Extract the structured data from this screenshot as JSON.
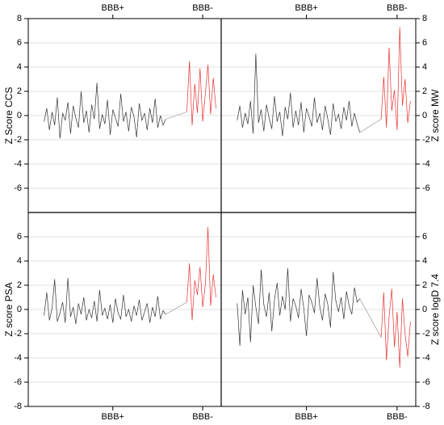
{
  "chart_data": [
    {
      "type": "line",
      "ylabel": "Z Score CCS",
      "xlim": [
        -6,
        67
      ],
      "ylim": [
        -8,
        8
      ],
      "grid": true,
      "xticks": [
        {
          "value": 26,
          "label": "BBB+"
        },
        {
          "value": 60,
          "label": "BBB-"
        }
      ],
      "yticks": [
        -6,
        -4,
        -2,
        0,
        2,
        4,
        6,
        8
      ],
      "series": [
        {
          "color": "#333333",
          "x": [
            0,
            1,
            2,
            3,
            4,
            5,
            6,
            7,
            8,
            9,
            10,
            11,
            12,
            13,
            14,
            15,
            16,
            17,
            18,
            19,
            20,
            21,
            22,
            23,
            24,
            25,
            26,
            27,
            28,
            29,
            30,
            31,
            32,
            33,
            34,
            35,
            36,
            37,
            38,
            39,
            40,
            41,
            42,
            43,
            44,
            45,
            46
          ],
          "values": [
            -0.5,
            0.6,
            -1.2,
            0.3,
            -0.8,
            1.5,
            -1.9,
            0.2,
            -0.4,
            1.1,
            -1.5,
            0.8,
            -0.2,
            -1.0,
            2.0,
            -0.6,
            0.4,
            -1.4,
            0.9,
            -0.3,
            2.7,
            -1.1,
            0.1,
            -0.7,
            1.3,
            -1.6,
            0.5,
            -0.2,
            -0.9,
            1.8,
            -0.5,
            0.3,
            -1.3,
            0.7,
            -0.1,
            -1.8,
            1.0,
            -0.4,
            0.2,
            -1.2,
            0.6,
            -0.6,
            1.4,
            -1.0,
            0.0,
            -0.8,
            -0.3
          ]
        },
        {
          "color": "#e83030",
          "x": [
            54,
            55,
            56,
            57,
            58,
            59,
            60,
            61,
            62,
            63,
            64,
            65
          ],
          "values": [
            0.3,
            4.5,
            -0.8,
            2.6,
            0.2,
            3.9,
            -0.5,
            1.8,
            4.2,
            0.1,
            3.1,
            0.6
          ]
        }
      ]
    },
    {
      "type": "line",
      "ylabel": "Z score MW",
      "xlim": [
        -6,
        67
      ],
      "ylim": [
        -8,
        8
      ],
      "grid": true,
      "xticks": [
        {
          "value": 26,
          "label": "BBB+"
        },
        {
          "value": 60,
          "label": "BBB-"
        }
      ],
      "yticks": [
        -6,
        -4,
        -2,
        0,
        2,
        4,
        6,
        8
      ],
      "series": [
        {
          "color": "#333333",
          "x": [
            0,
            1,
            2,
            3,
            4,
            5,
            6,
            7,
            8,
            9,
            10,
            11,
            12,
            13,
            14,
            15,
            16,
            17,
            18,
            19,
            20,
            21,
            22,
            23,
            24,
            25,
            26,
            27,
            28,
            29,
            30,
            31,
            32,
            33,
            34,
            35,
            36,
            37,
            38,
            39,
            40,
            41,
            42,
            43,
            44,
            45,
            46
          ],
          "values": [
            -0.4,
            0.8,
            -1.0,
            0.2,
            -0.7,
            1.2,
            -1.5,
            5.1,
            -0.6,
            0.5,
            -1.3,
            0.9,
            -0.2,
            -1.1,
            1.6,
            -0.5,
            0.3,
            -1.7,
            0.7,
            -0.3,
            1.9,
            -1.0,
            0.4,
            -0.8,
            1.1,
            -1.4,
            0.6,
            -0.1,
            -0.9,
            1.5,
            -0.6,
            0.2,
            -1.2,
            0.8,
            -0.3,
            -1.6,
            1.0,
            -0.5,
            0.1,
            -1.1,
            0.7,
            -0.4,
            1.2,
            -0.9,
            0.2,
            -0.7,
            -1.4
          ]
        },
        {
          "color": "#e83030",
          "x": [
            54,
            55,
            56,
            57,
            58,
            59,
            60,
            61,
            62,
            63,
            64,
            65
          ],
          "values": [
            -0.3,
            3.2,
            -1.0,
            5.6,
            0.4,
            2.1,
            -1.2,
            7.3,
            0.8,
            3.0,
            -0.6,
            1.2
          ]
        }
      ]
    },
    {
      "type": "line",
      "ylabel": "Z score PSA",
      "xlim": [
        -6,
        67
      ],
      "ylim": [
        -8,
        8
      ],
      "grid": true,
      "xticks": [
        {
          "value": 26,
          "label": "BBB+"
        },
        {
          "value": 60,
          "label": "BBB-"
        }
      ],
      "yticks": [
        -8,
        -6,
        -4,
        -2,
        0,
        2,
        4,
        6
      ],
      "series": [
        {
          "color": "#333333",
          "x": [
            0,
            1,
            2,
            3,
            4,
            5,
            6,
            7,
            8,
            9,
            10,
            11,
            12,
            13,
            14,
            15,
            16,
            17,
            18,
            19,
            20,
            21,
            22,
            23,
            24,
            25,
            26,
            27,
            28,
            29,
            30,
            31,
            32,
            33,
            34,
            35,
            36,
            37,
            38,
            39,
            40,
            41,
            42,
            43,
            44,
            45,
            46
          ],
          "values": [
            -0.5,
            1.4,
            -0.9,
            0.1,
            2.5,
            -1.0,
            -0.3,
            0.6,
            -1.1,
            2.6,
            -0.6,
            0.2,
            -1.2,
            0.5,
            -0.4,
            1.0,
            -0.9,
            0.0,
            -0.7,
            0.7,
            -1.0,
            1.6,
            -0.5,
            0.1,
            -0.8,
            0.4,
            -1.1,
            0.9,
            -0.3,
            -0.8,
            1.2,
            -0.6,
            0.0,
            -1.0,
            0.3,
            -0.5,
            0.8,
            -0.9,
            -0.2,
            0.5,
            -1.1,
            0.2,
            -0.6,
            1.1,
            -0.8,
            -0.1,
            -0.4
          ]
        },
        {
          "color": "#e83030",
          "x": [
            54,
            55,
            56,
            57,
            58,
            59,
            60,
            61,
            62,
            63,
            64,
            65
          ],
          "values": [
            0.6,
            3.8,
            -0.9,
            2.4,
            1.2,
            3.5,
            0.2,
            2.1,
            6.8,
            0.3,
            2.9,
            1.0
          ]
        }
      ]
    },
    {
      "type": "line",
      "ylabel": "Z score logD 7.4",
      "xlim": [
        -6,
        67
      ],
      "ylim": [
        -8,
        8
      ],
      "grid": true,
      "xticks": [
        {
          "value": 26,
          "label": "BBB+"
        },
        {
          "value": 60,
          "label": "BBB-"
        }
      ],
      "yticks": [
        -8,
        -6,
        -4,
        -2,
        0,
        2,
        4,
        6
      ],
      "series": [
        {
          "color": "#333333",
          "x": [
            0,
            1,
            2,
            3,
            4,
            5,
            6,
            7,
            8,
            9,
            10,
            11,
            12,
            13,
            14,
            15,
            16,
            17,
            18,
            19,
            20,
            21,
            22,
            23,
            24,
            25,
            26,
            27,
            28,
            29,
            30,
            31,
            32,
            33,
            34,
            35,
            36,
            37,
            38,
            39,
            40,
            41,
            42,
            43,
            44,
            45,
            46
          ],
          "values": [
            0.5,
            -3.0,
            1.6,
            -0.4,
            1.0,
            -2.7,
            2.0,
            0.2,
            -1.2,
            3.3,
            0.4,
            -0.6,
            1.4,
            -1.8,
            0.8,
            2.2,
            -0.5,
            1.1,
            0.0,
            3.4,
            -1.0,
            0.9,
            0.3,
            -0.7,
            1.7,
            0.1,
            -2.2,
            1.2,
            0.6,
            -0.3,
            2.6,
            0.2,
            -0.9,
            1.3,
            0.4,
            -1.5,
            3.1,
            0.7,
            -0.2,
            1.0,
            -0.8,
            1.5,
            0.3,
            -0.4,
            1.8,
            0.6,
            0.9
          ]
        },
        {
          "color": "#e83030",
          "x": [
            54,
            55,
            56,
            57,
            58,
            59,
            60,
            61,
            62,
            63,
            64,
            65
          ],
          "values": [
            -2.3,
            1.4,
            -4.2,
            -0.6,
            1.7,
            -3.1,
            -0.2,
            -4.8,
            0.9,
            -2.0,
            -3.9,
            -1.0
          ]
        }
      ]
    }
  ]
}
